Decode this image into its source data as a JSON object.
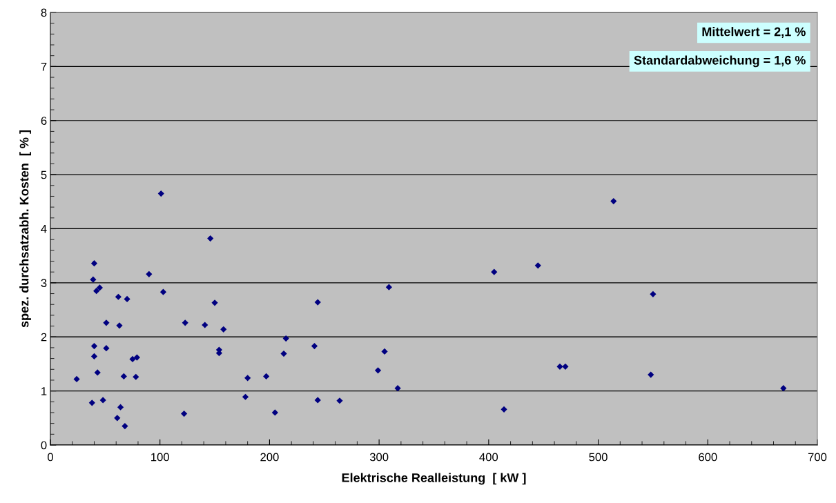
{
  "chart_data": {
    "type": "scatter",
    "xlabel": "Elektrische Realleistung  [ kW ]",
    "ylabel": "spez. durchsatzabh. Kosten  [ % ]",
    "x": [
      101,
      146,
      40,
      39,
      90,
      42,
      45,
      103,
      62,
      70,
      150,
      51,
      63,
      123,
      141,
      158,
      40,
      51,
      40,
      75,
      79,
      154,
      154,
      24,
      43,
      67,
      78,
      180,
      178,
      38,
      48,
      64,
      61,
      68,
      122,
      309,
      244,
      215,
      241,
      213,
      305,
      197,
      299,
      317,
      244,
      264,
      205,
      514,
      405,
      445,
      550,
      465,
      470,
      548,
      669,
      414
    ],
    "series": [
      {
        "color": "#000080",
        "values": [
          4.65,
          3.82,
          3.36,
          3.06,
          3.16,
          2.85,
          2.91,
          2.83,
          2.74,
          2.7,
          2.63,
          2.26,
          2.21,
          2.26,
          2.22,
          2.14,
          1.83,
          1.79,
          1.64,
          1.59,
          1.62,
          1.76,
          1.7,
          1.22,
          1.34,
          1.27,
          1.26,
          1.24,
          0.89,
          0.78,
          0.83,
          0.7,
          0.5,
          0.35,
          0.58,
          2.92,
          2.64,
          1.97,
          1.83,
          1.69,
          1.73,
          1.27,
          1.38,
          1.05,
          0.83,
          0.82,
          0.6,
          4.51,
          3.2,
          3.32,
          2.79,
          1.45,
          1.45,
          1.3,
          1.05,
          0.66
        ]
      }
    ],
    "marker": "diamond",
    "grid": "y",
    "xlim": [
      0,
      700
    ],
    "ylim": [
      0,
      8
    ],
    "xticks": [
      0,
      100,
      200,
      300,
      400,
      500,
      600,
      700
    ],
    "yticks": [
      0,
      1,
      2,
      3,
      4,
      5,
      6,
      7,
      8
    ],
    "annotations": [
      "Mittelwert = 2,1 %",
      "Standardabweichung = 1,6 %"
    ]
  }
}
